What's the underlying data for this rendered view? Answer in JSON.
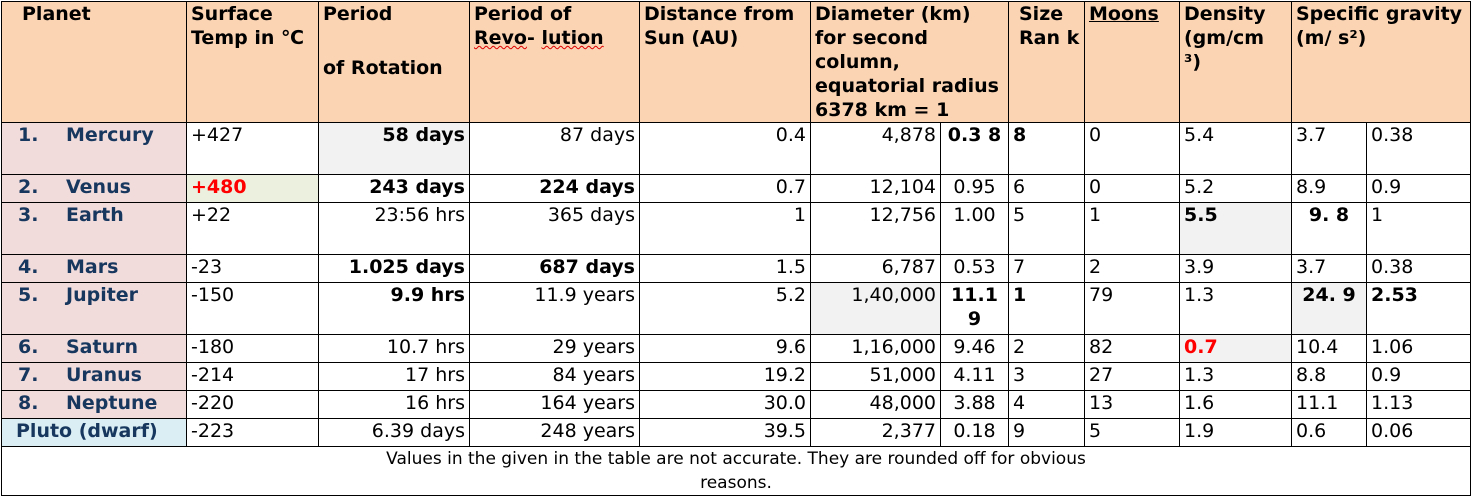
{
  "headers": {
    "planet": "Planet",
    "surface_temp": "Surface Temp in ℃",
    "period_rotation_main": "Period",
    "period_rotation_sub": "of Rotation",
    "period_revolution": "Period of",
    "period_revolution_2a": "Revo",
    "period_revolution_2b": "- ",
    "period_revolution_2c": "lution",
    "distance": "Distance from Sun (AU)",
    "diameter": "Diameter (km) for second column, equatorial radius 6378 km = 1",
    "size_rank": "Size Ran k",
    "moons": "Moons",
    "density": "Density (gm/cm ³)",
    "specific_gravity": "Specific gravity (m/ s²)"
  },
  "rows": [
    {
      "num": "1.",
      "name": "Mercury",
      "temp": "+427",
      "rotation": "58 days",
      "revolution": "87 days",
      "distance": "0.4",
      "diameter_km": "4,878",
      "diameter_rel": "0.3 8",
      "size_rank": "8",
      "moons": "0",
      "density": "5.4",
      "gravity": "3.7",
      "gravity_rel": "0.38"
    },
    {
      "num": "2.",
      "name": "Venus",
      "temp": "+480",
      "rotation": "243 days",
      "revolution": "224 days",
      "distance": "0.7",
      "diameter_km": "12,104",
      "diameter_rel": "0.95",
      "size_rank": "6",
      "moons": "0",
      "density": "5.2",
      "gravity": "8.9",
      "gravity_rel": "0.9"
    },
    {
      "num": "3.",
      "name": "Earth",
      "temp": "+22",
      "rotation": "23:56 hrs",
      "revolution": "365 days",
      "distance": "1",
      "diameter_km": "12,756",
      "diameter_rel": "1.00",
      "size_rank": "5",
      "moons": "1",
      "density": "5.5",
      "gravity": "9. 8",
      "gravity_rel": "1"
    },
    {
      "num": "4.",
      "name": "Mars",
      "temp": "-23",
      "rotation": "1.025 days",
      "revolution": "687 days",
      "distance": "1.5",
      "diameter_km": "6,787",
      "diameter_rel": "0.53",
      "size_rank": "7",
      "moons": "2",
      "density": "3.9",
      "gravity": "3.7",
      "gravity_rel": "0.38"
    },
    {
      "num": "5.",
      "name": "Jupiter",
      "temp": "-150",
      "rotation": "9.9 hrs",
      "revolution": "11.9 years",
      "distance": "5.2",
      "diameter_km": "1,40,000",
      "diameter_rel": "11.1 9",
      "size_rank": "1",
      "moons": "79",
      "density": "1.3",
      "gravity": "24. 9",
      "gravity_rel": "2.53"
    },
    {
      "num": "6.",
      "name": "Saturn",
      "temp": "-180",
      "rotation": "10.7 hrs",
      "revolution": "29 years",
      "distance": "9.6",
      "diameter_km": "1,16,000",
      "diameter_rel": "9.46",
      "size_rank": "2",
      "moons": "82",
      "density": "0.7",
      "gravity": "10.4",
      "gravity_rel": "1.06"
    },
    {
      "num": "7.",
      "name": "Uranus",
      "temp": "-214",
      "rotation": "17 hrs",
      "revolution": "84 years",
      "distance": "19.2",
      "diameter_km": "51,000",
      "diameter_rel": "4.11",
      "size_rank": "3",
      "moons": "27",
      "density": "1.3",
      "gravity": "8.8",
      "gravity_rel": "0.9"
    },
    {
      "num": "8.",
      "name": "Neptune",
      "temp": "-220",
      "rotation": "16 hrs",
      "revolution": "164 years",
      "distance": "30.0",
      "diameter_km": "48,000",
      "diameter_rel": "3.88",
      "size_rank": "4",
      "moons": "13",
      "density": "1.6",
      "gravity": "11.1",
      "gravity_rel": "1.13"
    },
    {
      "num": "",
      "name": "Pluto (dwarf)",
      "temp": "-223",
      "rotation": "6.39 days",
      "revolution": "248 years",
      "distance": "39.5",
      "diameter_km": "2,377",
      "diameter_rel": "0.18",
      "size_rank": "9",
      "moons": "5",
      "density": "1.9",
      "gravity": "0.6",
      "gravity_rel": "0.06"
    }
  ],
  "footer": "Values in the given in the table are not accurate. They are rounded off for obvious reasons.",
  "colors": {
    "header_bg": "#fbd4b4",
    "planet_name_bg": "#f2dcdb",
    "pluto_name_bg": "#dbeef3",
    "planet_name_text": "#17375e",
    "highlight_red": "#ff0000",
    "grey_cell": "#f2f2f2",
    "green_cell": "#ebf1de"
  }
}
